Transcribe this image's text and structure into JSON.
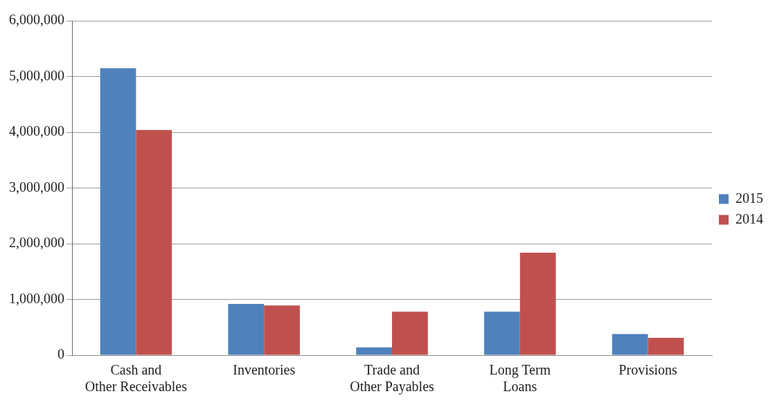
{
  "chart_data": {
    "type": "bar",
    "categories": [
      "Cash and Other Receivables",
      "Inventories",
      "Trade and Other Payables",
      "Long Term Loans",
      "Provisions"
    ],
    "series": [
      {
        "name": "2015",
        "color": "#4f81bd",
        "values": [
          5150000,
          920000,
          140000,
          780000,
          380000
        ]
      },
      {
        "name": "2014",
        "color": "#c0504d",
        "values": [
          4040000,
          890000,
          780000,
          1840000,
          310000
        ]
      }
    ],
    "ylim": [
      0,
      6000000
    ],
    "yticks": [
      {
        "value": 0,
        "label": "0"
      },
      {
        "value": 1000000,
        "label": "1,000,000"
      },
      {
        "value": 2000000,
        "label": "2,000,000"
      },
      {
        "value": 3000000,
        "label": "3,000,000"
      },
      {
        "value": 4000000,
        "label": "4,000,000"
      },
      {
        "value": 5000000,
        "label": "5,000,000"
      },
      {
        "value": 6000000,
        "label": "6,000,000"
      }
    ],
    "grid": "y",
    "legend": "right"
  }
}
